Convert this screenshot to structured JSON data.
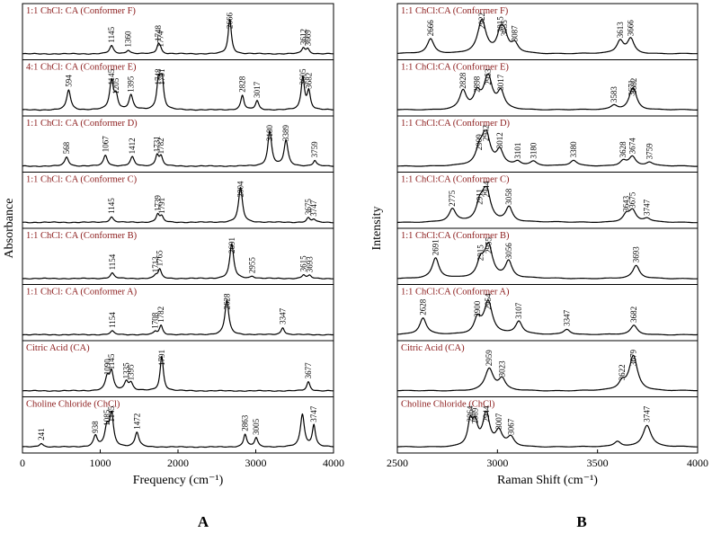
{
  "chart_data": [
    {
      "type": "line",
      "panel_letter": "A",
      "xlabel": "Frequency (cm⁻¹)",
      "ylabel": "Absorbance",
      "xlim": [
        0,
        4000
      ],
      "x_ticks": [
        0,
        1000,
        2000,
        3000,
        4000
      ],
      "grid": false,
      "series": [
        {
          "name": "1:1 ChCl: CA (Conformer F)",
          "peaks": [
            {
              "x": 1145,
              "h": 0.22,
              "w": 30,
              "label": "1145"
            },
            {
              "x": 1360,
              "h": 0.1,
              "w": 30,
              "label": "1360"
            },
            {
              "x": 1748,
              "h": 0.26,
              "w": 25,
              "label": "1748"
            },
            {
              "x": 1774,
              "h": 0.1,
              "w": 20,
              "label": "1774"
            },
            {
              "x": 2666,
              "h": 0.95,
              "w": 25,
              "label": "2666"
            },
            {
              "x": 3612,
              "h": 0.16,
              "w": 25,
              "label": "3612"
            },
            {
              "x": 3669,
              "h": 0.13,
              "w": 25,
              "label": "3669"
            }
          ]
        },
        {
          "name": "4:1 ChCl: CA (Conformer E)",
          "peaks": [
            {
              "x": 594,
              "h": 0.55,
              "w": 30,
              "label": "594"
            },
            {
              "x": 1145,
              "h": 0.8,
              "w": 30,
              "label": "1145"
            },
            {
              "x": 1205,
              "h": 0.35,
              "w": 25,
              "label": "1205"
            },
            {
              "x": 1395,
              "h": 0.4,
              "w": 30,
              "label": "1395"
            },
            {
              "x": 1748,
              "h": 0.75,
              "w": 25,
              "label": "1748"
            },
            {
              "x": 1791,
              "h": 0.95,
              "w": 25,
              "label": "1791"
            },
            {
              "x": 2828,
              "h": 0.4,
              "w": 25,
              "label": "2828"
            },
            {
              "x": 3017,
              "h": 0.25,
              "w": 25,
              "label": "3017"
            },
            {
              "x": 3605,
              "h": 0.9,
              "w": 25,
              "label": "3605"
            },
            {
              "x": 3682,
              "h": 0.5,
              "w": 25,
              "label": "3682"
            }
          ]
        },
        {
          "name": "1:1 ChCl: CA (Conformer D)",
          "peaks": [
            {
              "x": 568,
              "h": 0.25,
              "w": 30,
              "label": "568"
            },
            {
              "x": 1067,
              "h": 0.3,
              "w": 30,
              "label": "1067"
            },
            {
              "x": 1412,
              "h": 0.25,
              "w": 30,
              "label": "1412"
            },
            {
              "x": 1731,
              "h": 0.3,
              "w": 25,
              "label": "1731"
            },
            {
              "x": 1782,
              "h": 0.25,
              "w": 25,
              "label": "1782"
            },
            {
              "x": 3180,
              "h": 0.95,
              "w": 30,
              "label": "3180"
            },
            {
              "x": 3389,
              "h": 0.7,
              "w": 30,
              "label": "3389"
            },
            {
              "x": 3759,
              "h": 0.15,
              "w": 25,
              "label": "3759"
            }
          ]
        },
        {
          "name": "1:1 ChCl: CA (Conformer C)",
          "peaks": [
            {
              "x": 1145,
              "h": 0.15,
              "w": 30,
              "label": "1145"
            },
            {
              "x": 1739,
              "h": 0.22,
              "w": 25,
              "label": "1739"
            },
            {
              "x": 1791,
              "h": 0.15,
              "w": 25,
              "label": "1791"
            },
            {
              "x": 2804,
              "h": 0.95,
              "w": 30,
              "label": "2804"
            },
            {
              "x": 3675,
              "h": 0.12,
              "w": 25,
              "label": "3675"
            },
            {
              "x": 3747,
              "h": 0.08,
              "w": 25,
              "label": "3747"
            }
          ]
        },
        {
          "name": "1:1 ChCl: CA (Conformer B)",
          "peaks": [
            {
              "x": 1154,
              "h": 0.15,
              "w": 30,
              "label": "1154"
            },
            {
              "x": 1713,
              "h": 0.08,
              "w": 25,
              "label": "1713"
            },
            {
              "x": 1765,
              "h": 0.25,
              "w": 25,
              "label": "1765"
            },
            {
              "x": 2691,
              "h": 0.95,
              "w": 30,
              "label": "2691"
            },
            {
              "x": 2955,
              "h": 0.06,
              "w": 30,
              "label": "2955"
            },
            {
              "x": 3615,
              "h": 0.1,
              "w": 25,
              "label": "3615"
            },
            {
              "x": 3693,
              "h": 0.08,
              "w": 25,
              "label": "3693"
            }
          ]
        },
        {
          "name": "1:1 ChCl: CA (Conformer A)",
          "peaks": [
            {
              "x": 1154,
              "h": 0.1,
              "w": 30,
              "label": "1154"
            },
            {
              "x": 1708,
              "h": 0.08,
              "w": 25,
              "label": "1708"
            },
            {
              "x": 1782,
              "h": 0.25,
              "w": 25,
              "label": "1782"
            },
            {
              "x": 2628,
              "h": 0.95,
              "w": 30,
              "label": "2628"
            },
            {
              "x": 3347,
              "h": 0.2,
              "w": 25,
              "label": "3347"
            }
          ]
        },
        {
          "name": "Citric Acid (CA)",
          "peaks": [
            {
              "x": 1090,
              "h": 0.35,
              "w": 30,
              "label": "1090"
            },
            {
              "x": 1145,
              "h": 0.5,
              "w": 30,
              "label": "1145"
            },
            {
              "x": 1335,
              "h": 0.25,
              "w": 30,
              "label": "1335"
            },
            {
              "x": 1395,
              "h": 0.2,
              "w": 30,
              "label": "1395"
            },
            {
              "x": 1791,
              "h": 0.95,
              "w": 25,
              "label": "1791"
            },
            {
              "x": 3677,
              "h": 0.25,
              "w": 25,
              "label": "3677"
            }
          ]
        },
        {
          "name": "Choline Chloride (ChCl)",
          "peaks": [
            {
              "x": 241,
              "h": 0.1,
              "w": 30,
              "label": "241"
            },
            {
              "x": 938,
              "h": 0.3,
              "w": 30,
              "label": "938"
            },
            {
              "x": 1085,
              "h": 0.5,
              "w": 30,
              "label": "1085"
            },
            {
              "x": 1145,
              "h": 0.9,
              "w": 30,
              "label": "1145"
            },
            {
              "x": 1472,
              "h": 0.4,
              "w": 30,
              "label": "1472"
            },
            {
              "x": 2863,
              "h": 0.35,
              "w": 25,
              "label": "2863"
            },
            {
              "x": 3005,
              "h": 0.25,
              "w": 25,
              "label": "3005"
            },
            {
              "x": 3600,
              "h": 0.9,
              "w": 30,
              "label": ""
            },
            {
              "x": 3747,
              "h": 0.6,
              "w": 25,
              "label": "3747"
            }
          ]
        }
      ]
    },
    {
      "type": "line",
      "panel_letter": "B",
      "xlabel": "Raman Shift (cm⁻¹)",
      "ylabel": "Intensity",
      "xlim": [
        2500,
        4000
      ],
      "x_ticks": [
        2500,
        3000,
        3500,
        4000
      ],
      "grid": false,
      "series": [
        {
          "name": "1:1 ChCl:CA (Conformer F)",
          "peaks": [
            {
              "x": 2666,
              "h": 0.4,
              "w": 20,
              "label": "2666"
            },
            {
              "x": 2922,
              "h": 0.9,
              "w": 25,
              "label": "2922"
            },
            {
              "x": 3015,
              "h": 0.5,
              "w": 20,
              "label": "3015"
            },
            {
              "x": 3035,
              "h": 0.4,
              "w": 20,
              "label": "3035"
            },
            {
              "x": 3087,
              "h": 0.25,
              "w": 20,
              "label": "3087"
            },
            {
              "x": 3613,
              "h": 0.35,
              "w": 20,
              "label": "3613"
            },
            {
              "x": 3666,
              "h": 0.4,
              "w": 20,
              "label": "3666"
            }
          ]
        },
        {
          "name": "1:1 ChCl:CA (Conformer E)",
          "peaks": [
            {
              "x": 2828,
              "h": 0.5,
              "w": 20,
              "label": "2828"
            },
            {
              "x": 2898,
              "h": 0.4,
              "w": 20,
              "label": "2898"
            },
            {
              "x": 2953,
              "h": 0.9,
              "w": 25,
              "label": "2953"
            },
            {
              "x": 3017,
              "h": 0.45,
              "w": 20,
              "label": "3017"
            },
            {
              "x": 3583,
              "h": 0.12,
              "w": 20,
              "label": "3583"
            },
            {
              "x": 3671,
              "h": 0.3,
              "w": 20,
              "label": "3671"
            },
            {
              "x": 3682,
              "h": 0.35,
              "w": 20,
              "label": "3682"
            }
          ]
        },
        {
          "name": "1:1 ChCl:CA (Conformer D)",
          "peaks": [
            {
              "x": 2909,
              "h": 0.35,
              "w": 20,
              "label": "2909"
            },
            {
              "x": 2942,
              "h": 0.9,
              "w": 25,
              "label": "2942"
            },
            {
              "x": 3012,
              "h": 0.4,
              "w": 20,
              "label": "3012"
            },
            {
              "x": 3101,
              "h": 0.12,
              "w": 20,
              "label": "3101"
            },
            {
              "x": 3180,
              "h": 0.12,
              "w": 20,
              "label": "3180"
            },
            {
              "x": 3380,
              "h": 0.15,
              "w": 20,
              "label": "3380"
            },
            {
              "x": 3628,
              "h": 0.15,
              "w": 20,
              "label": "3628"
            },
            {
              "x": 3674,
              "h": 0.25,
              "w": 20,
              "label": "3674"
            },
            {
              "x": 3759,
              "h": 0.1,
              "w": 20,
              "label": "3759"
            }
          ]
        },
        {
          "name": "1:1 ChCl:CA (Conformer C)",
          "peaks": [
            {
              "x": 2775,
              "h": 0.35,
              "w": 20,
              "label": "2775"
            },
            {
              "x": 2911,
              "h": 0.4,
              "w": 20,
              "label": "2911"
            },
            {
              "x": 2944,
              "h": 0.9,
              "w": 25,
              "label": "2944"
            },
            {
              "x": 3058,
              "h": 0.4,
              "w": 20,
              "label": "3058"
            },
            {
              "x": 3643,
              "h": 0.2,
              "w": 20,
              "label": "3643"
            },
            {
              "x": 3675,
              "h": 0.3,
              "w": 20,
              "label": "3675"
            },
            {
              "x": 3747,
              "h": 0.1,
              "w": 20,
              "label": "3747"
            }
          ]
        },
        {
          "name": "1:1 ChCl:CA (Conformer B)",
          "peaks": [
            {
              "x": 2691,
              "h": 0.55,
              "w": 20,
              "label": "2691"
            },
            {
              "x": 2915,
              "h": 0.4,
              "w": 20,
              "label": "2915"
            },
            {
              "x": 2955,
              "h": 0.9,
              "w": 25,
              "label": "2955"
            },
            {
              "x": 3056,
              "h": 0.45,
              "w": 20,
              "label": "3056"
            },
            {
              "x": 3693,
              "h": 0.35,
              "w": 20,
              "label": "3693"
            }
          ]
        },
        {
          "name": "1:1 ChCl:CA (Conformer A)",
          "peaks": [
            {
              "x": 2628,
              "h": 0.45,
              "w": 20,
              "label": "2628"
            },
            {
              "x": 2900,
              "h": 0.4,
              "w": 20,
              "label": "2900"
            },
            {
              "x": 2954,
              "h": 0.9,
              "w": 25,
              "label": "2954"
            },
            {
              "x": 3107,
              "h": 0.35,
              "w": 20,
              "label": "3107"
            },
            {
              "x": 3347,
              "h": 0.15,
              "w": 20,
              "label": "3347"
            },
            {
              "x": 3682,
              "h": 0.25,
              "w": 20,
              "label": "3682"
            }
          ]
        },
        {
          "name": "Citric Acid (CA)",
          "peaks": [
            {
              "x": 2959,
              "h": 0.6,
              "w": 25,
              "label": "2959"
            },
            {
              "x": 3023,
              "h": 0.3,
              "w": 20,
              "label": "3023"
            },
            {
              "x": 3622,
              "h": 0.2,
              "w": 20,
              "label": "3622"
            },
            {
              "x": 3679,
              "h": 0.95,
              "w": 25,
              "label": "3679"
            }
          ]
        },
        {
          "name": "Choline Chloride (ChCl)",
          "peaks": [
            {
              "x": 2864,
              "h": 0.65,
              "w": 15,
              "label": "2864"
            },
            {
              "x": 2889,
              "h": 0.55,
              "w": 15,
              "label": "2889"
            },
            {
              "x": 2944,
              "h": 0.9,
              "w": 20,
              "label": "2944"
            },
            {
              "x": 3007,
              "h": 0.4,
              "w": 20,
              "label": "3007"
            },
            {
              "x": 3067,
              "h": 0.25,
              "w": 20,
              "label": "3067"
            },
            {
              "x": 3600,
              "h": 0.15,
              "w": 20,
              "label": ""
            },
            {
              "x": 3747,
              "h": 0.6,
              "w": 25,
              "label": "3747"
            }
          ]
        }
      ]
    }
  ]
}
